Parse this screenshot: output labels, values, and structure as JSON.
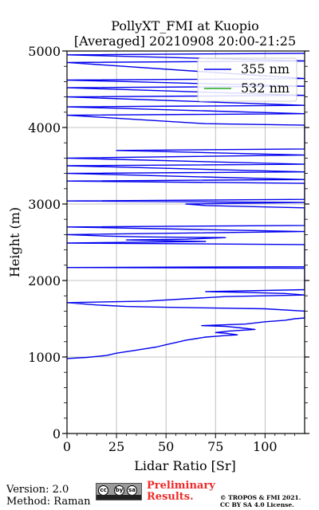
{
  "chart_data": {
    "type": "line",
    "title_line1": "PollyXT_FMI at Kuopio",
    "title_line2": "[Averaged] 20210908 20:00-21:25",
    "xlabel": "Lidar Ratio [Sr]",
    "ylabel": "Height (m)",
    "xlim": [
      0,
      120
    ],
    "ylim": [
      0,
      5000
    ],
    "xticks": [
      "0",
      "25",
      "50",
      "75",
      "100"
    ],
    "yticks": [
      "0",
      "1000",
      "2000",
      "3000",
      "4000",
      "5000"
    ],
    "grid": true,
    "legend_position": "top-right",
    "series": [
      {
        "name": "355 nm",
        "color": "#0000ee",
        "points": [
          [
            0,
            980
          ],
          [
            10,
            995
          ],
          [
            20,
            1020
          ],
          [
            25,
            1050
          ],
          [
            30,
            1070
          ],
          [
            35,
            1090
          ],
          [
            40,
            1110
          ],
          [
            45,
            1130
          ],
          [
            50,
            1160
          ],
          [
            55,
            1190
          ],
          [
            60,
            1220
          ],
          [
            65,
            1240
          ],
          [
            70,
            1260
          ],
          [
            75,
            1270
          ],
          [
            80,
            1280
          ],
          [
            86,
            1290
          ],
          [
            80,
            1310
          ],
          [
            75,
            1320
          ],
          [
            82,
            1340
          ],
          [
            95,
            1360
          ],
          [
            88,
            1380
          ],
          [
            80,
            1400
          ],
          [
            68,
            1410
          ],
          [
            90,
            1430
          ],
          [
            100,
            1460
          ],
          [
            110,
            1480
          ],
          [
            115,
            1500
          ],
          [
            120,
            1510
          ],
          [
            120,
            1600
          ],
          [
            100,
            1630
          ],
          [
            50,
            1650
          ],
          [
            30,
            1660
          ],
          [
            15,
            1680
          ],
          [
            0,
            1710
          ],
          [
            40,
            1730
          ],
          [
            60,
            1760
          ],
          [
            80,
            1790
          ],
          [
            100,
            1800
          ],
          [
            120,
            1810
          ],
          [
            110,
            1830
          ],
          [
            90,
            1845
          ],
          [
            70,
            1855
          ],
          [
            120,
            1880
          ],
          [
            120,
            2160
          ],
          [
            0,
            2170
          ],
          [
            120,
            2180
          ],
          [
            120,
            2470
          ],
          [
            0,
            2490
          ],
          [
            70,
            2510
          ],
          [
            50,
            2520
          ],
          [
            30,
            2530
          ],
          [
            60,
            2540
          ],
          [
            80,
            2560
          ],
          [
            40,
            2570
          ],
          [
            20,
            2580
          ],
          [
            0,
            2600
          ],
          [
            120,
            2640
          ],
          [
            0,
            2700
          ],
          [
            120,
            2720
          ],
          [
            120,
            2950
          ],
          [
            70,
            2980
          ],
          [
            60,
            3000
          ],
          [
            120,
            3020
          ],
          [
            0,
            3040
          ],
          [
            120,
            3060
          ],
          [
            120,
            3270
          ],
          [
            0,
            3300
          ],
          [
            120,
            3320
          ],
          [
            0,
            3400
          ],
          [
            120,
            3420
          ],
          [
            0,
            3500
          ],
          [
            120,
            3520
          ],
          [
            0,
            3600
          ],
          [
            120,
            3640
          ],
          [
            25,
            3700
          ],
          [
            120,
            3720
          ],
          [
            120,
            4030
          ],
          [
            70,
            4050
          ],
          [
            0,
            4160
          ],
          [
            120,
            4180
          ],
          [
            0,
            4270
          ],
          [
            120,
            4290
          ],
          [
            0,
            4400
          ],
          [
            120,
            4420
          ],
          [
            0,
            4520
          ],
          [
            120,
            4540
          ],
          [
            0,
            4620
          ],
          [
            120,
            4640
          ],
          [
            0,
            4850
          ],
          [
            120,
            4870
          ],
          [
            0,
            4950
          ],
          [
            120,
            4970
          ]
        ]
      },
      {
        "name": "532 nm",
        "color": "#22aa22",
        "points": []
      }
    ]
  },
  "footer": {
    "version": "Version: 2.0",
    "method": "Method: Raman",
    "cc_symbols": [
      "cc",
      "by",
      "sa"
    ],
    "preliminary_line1": "Preliminary",
    "preliminary_line2": "Results.",
    "copyright_line1": "© TROPOS & FMI 2021.",
    "copyright_line2": "CC BY SA 4.0 License."
  }
}
